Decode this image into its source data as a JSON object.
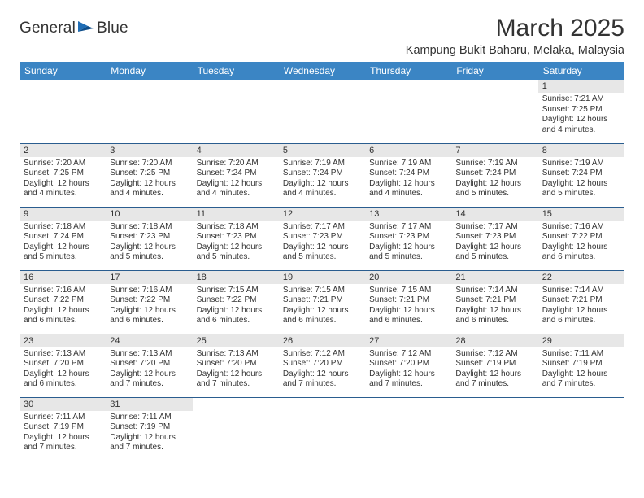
{
  "brand": {
    "name_part1": "General",
    "name_part2": "Blue",
    "text_color": "#333333",
    "icon_color": "#1f6db5"
  },
  "header": {
    "title": "March 2025",
    "location": "Kampung Bukit Baharu, Melaka, Malaysia"
  },
  "colors": {
    "header_row_bg": "#3b85c4",
    "header_row_text": "#ffffff",
    "day_num_bg": "#e7e7e7",
    "cell_border": "#2a5d8f",
    "text": "#333333"
  },
  "weekdays": [
    "Sunday",
    "Monday",
    "Tuesday",
    "Wednesday",
    "Thursday",
    "Friday",
    "Saturday"
  ],
  "weeks": [
    [
      null,
      null,
      null,
      null,
      null,
      null,
      {
        "n": "1",
        "sr": "7:21 AM",
        "ss": "7:25 PM",
        "dl": "12 hours and 4 minutes."
      }
    ],
    [
      {
        "n": "2",
        "sr": "7:20 AM",
        "ss": "7:25 PM",
        "dl": "12 hours and 4 minutes."
      },
      {
        "n": "3",
        "sr": "7:20 AM",
        "ss": "7:25 PM",
        "dl": "12 hours and 4 minutes."
      },
      {
        "n": "4",
        "sr": "7:20 AM",
        "ss": "7:24 PM",
        "dl": "12 hours and 4 minutes."
      },
      {
        "n": "5",
        "sr": "7:19 AM",
        "ss": "7:24 PM",
        "dl": "12 hours and 4 minutes."
      },
      {
        "n": "6",
        "sr": "7:19 AM",
        "ss": "7:24 PM",
        "dl": "12 hours and 4 minutes."
      },
      {
        "n": "7",
        "sr": "7:19 AM",
        "ss": "7:24 PM",
        "dl": "12 hours and 5 minutes."
      },
      {
        "n": "8",
        "sr": "7:19 AM",
        "ss": "7:24 PM",
        "dl": "12 hours and 5 minutes."
      }
    ],
    [
      {
        "n": "9",
        "sr": "7:18 AM",
        "ss": "7:24 PM",
        "dl": "12 hours and 5 minutes."
      },
      {
        "n": "10",
        "sr": "7:18 AM",
        "ss": "7:23 PM",
        "dl": "12 hours and 5 minutes."
      },
      {
        "n": "11",
        "sr": "7:18 AM",
        "ss": "7:23 PM",
        "dl": "12 hours and 5 minutes."
      },
      {
        "n": "12",
        "sr": "7:17 AM",
        "ss": "7:23 PM",
        "dl": "12 hours and 5 minutes."
      },
      {
        "n": "13",
        "sr": "7:17 AM",
        "ss": "7:23 PM",
        "dl": "12 hours and 5 minutes."
      },
      {
        "n": "14",
        "sr": "7:17 AM",
        "ss": "7:23 PM",
        "dl": "12 hours and 5 minutes."
      },
      {
        "n": "15",
        "sr": "7:16 AM",
        "ss": "7:22 PM",
        "dl": "12 hours and 6 minutes."
      }
    ],
    [
      {
        "n": "16",
        "sr": "7:16 AM",
        "ss": "7:22 PM",
        "dl": "12 hours and 6 minutes."
      },
      {
        "n": "17",
        "sr": "7:16 AM",
        "ss": "7:22 PM",
        "dl": "12 hours and 6 minutes."
      },
      {
        "n": "18",
        "sr": "7:15 AM",
        "ss": "7:22 PM",
        "dl": "12 hours and 6 minutes."
      },
      {
        "n": "19",
        "sr": "7:15 AM",
        "ss": "7:21 PM",
        "dl": "12 hours and 6 minutes."
      },
      {
        "n": "20",
        "sr": "7:15 AM",
        "ss": "7:21 PM",
        "dl": "12 hours and 6 minutes."
      },
      {
        "n": "21",
        "sr": "7:14 AM",
        "ss": "7:21 PM",
        "dl": "12 hours and 6 minutes."
      },
      {
        "n": "22",
        "sr": "7:14 AM",
        "ss": "7:21 PM",
        "dl": "12 hours and 6 minutes."
      }
    ],
    [
      {
        "n": "23",
        "sr": "7:13 AM",
        "ss": "7:20 PM",
        "dl": "12 hours and 6 minutes."
      },
      {
        "n": "24",
        "sr": "7:13 AM",
        "ss": "7:20 PM",
        "dl": "12 hours and 7 minutes."
      },
      {
        "n": "25",
        "sr": "7:13 AM",
        "ss": "7:20 PM",
        "dl": "12 hours and 7 minutes."
      },
      {
        "n": "26",
        "sr": "7:12 AM",
        "ss": "7:20 PM",
        "dl": "12 hours and 7 minutes."
      },
      {
        "n": "27",
        "sr": "7:12 AM",
        "ss": "7:20 PM",
        "dl": "12 hours and 7 minutes."
      },
      {
        "n": "28",
        "sr": "7:12 AM",
        "ss": "7:19 PM",
        "dl": "12 hours and 7 minutes."
      },
      {
        "n": "29",
        "sr": "7:11 AM",
        "ss": "7:19 PM",
        "dl": "12 hours and 7 minutes."
      }
    ],
    [
      {
        "n": "30",
        "sr": "7:11 AM",
        "ss": "7:19 PM",
        "dl": "12 hours and 7 minutes."
      },
      {
        "n": "31",
        "sr": "7:11 AM",
        "ss": "7:19 PM",
        "dl": "12 hours and 7 minutes."
      },
      null,
      null,
      null,
      null,
      null
    ]
  ],
  "labels": {
    "sunrise": "Sunrise:",
    "sunset": "Sunset:",
    "daylight": "Daylight:"
  }
}
